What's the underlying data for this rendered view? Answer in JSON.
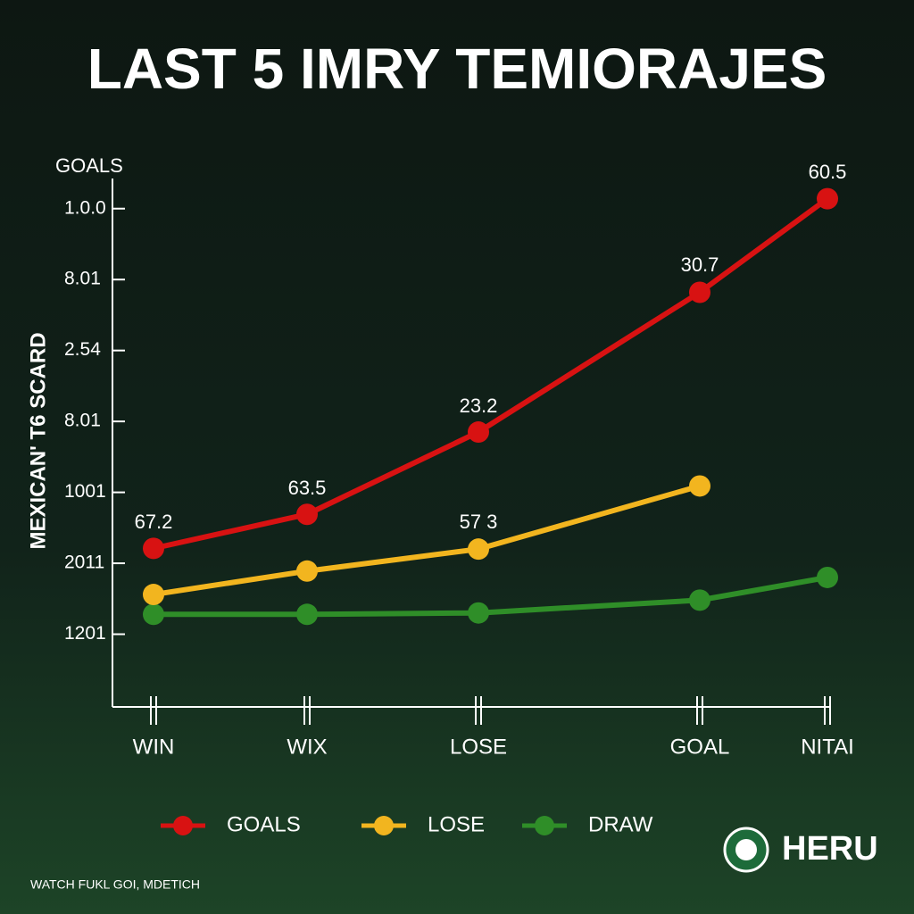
{
  "chart_data": {
    "type": "line",
    "title": "LAST 5 IMRY TEMIORAJES",
    "y_title": "GOALS",
    "y_label": "MEXICAN' T6 SCARD",
    "categories": [
      "WIN",
      "WIX",
      "LOSE",
      "GOAL",
      "NITAI"
    ],
    "series": [
      {
        "name": "GOALS",
        "color": "#d81212",
        "values": [
          2.21,
          2.69,
          3.85,
          5.82,
          7.14
        ]
      },
      {
        "name": "LOSE",
        "color": "#f2b51f",
        "values": [
          1.56,
          1.89,
          2.2,
          3.09,
          null
        ]
      },
      {
        "name": "DRAW",
        "color": "#2f8e28",
        "values": [
          1.28,
          1.28,
          1.3,
          1.48,
          1.8
        ]
      }
    ],
    "annotations": [
      "67.2",
      "63.5",
      "23.2",
      "30.7",
      "60.5",
      "57 3"
    ],
    "ylim": [
      0,
      7.5
    ],
    "yticks": [
      {
        "value": 1,
        "label": "1201"
      },
      {
        "value": 2,
        "label": "2011"
      },
      {
        "value": 3,
        "label": "1001"
      },
      {
        "value": 4,
        "label": "8.01"
      },
      {
        "value": 5,
        "label": "2.54"
      },
      {
        "value": 6,
        "label": "8.01"
      },
      {
        "value": 7,
        "label": "1.0.0"
      }
    ],
    "brand": "HERU",
    "footer": "WATCH FUKL GOI, MDETICH"
  }
}
